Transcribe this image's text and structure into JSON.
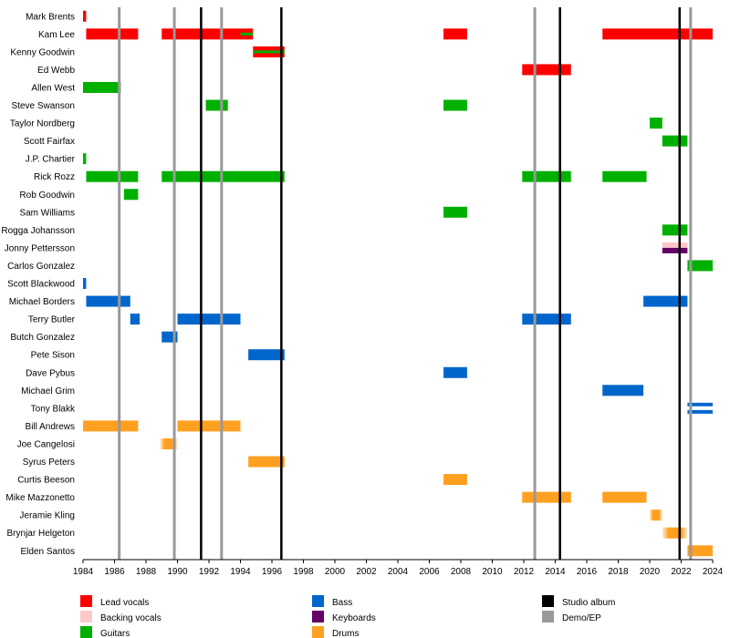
{
  "chart_data": {
    "type": "timeline",
    "x_range": [
      1984,
      2024
    ],
    "x_ticks": [
      1984,
      1986,
      1988,
      1990,
      1992,
      1994,
      1996,
      1998,
      2000,
      2002,
      2004,
      2006,
      2008,
      2010,
      2012,
      2014,
      2016,
      2018,
      2020,
      2022,
      2024
    ],
    "roles": {
      "lead": {
        "label": "Lead vocals",
        "color": "#ff0000"
      },
      "backing": {
        "label": "Backing vocals",
        "color": "#ffc8c8"
      },
      "guitar": {
        "label": "Guitars",
        "color": "#00b000"
      },
      "bass": {
        "label": "Bass",
        "color": "#0066cc"
      },
      "keys": {
        "label": "Keyboards",
        "color": "#660066"
      },
      "drums": {
        "label": "Drums",
        "color": "#ffa020"
      }
    },
    "event_types": {
      "studio": {
        "label": "Studio album",
        "color": "#000000"
      },
      "demo": {
        "label": "Demo/EP",
        "color": "#999999"
      }
    },
    "studio_albums": [
      1991.5,
      1996.6,
      2014.3,
      2021.9
    ],
    "demos": [
      1986.3,
      1989.8,
      1992.8,
      2012.7,
      2022.6
    ],
    "members": [
      {
        "name": "Mark Brents",
        "bars": [
          {
            "role": "lead",
            "from": 1984.0,
            "to": 1984.2
          }
        ]
      },
      {
        "name": "Kam Lee",
        "bars": [
          {
            "role": "lead",
            "from": 1984.2,
            "to": 1987.5
          },
          {
            "role": "lead",
            "from": 1989.0,
            "to": 1994.8,
            "overlay": "guitar",
            "overlay_from": 1994.0,
            "overlay_to": 1994.8
          },
          {
            "role": "lead",
            "from": 2006.9,
            "to": 2008.4
          },
          {
            "role": "lead",
            "from": 2017.0,
            "to": 2024.0
          }
        ]
      },
      {
        "name": "Kenny Goodwin",
        "bars": [
          {
            "role": "lead",
            "from": 1994.8,
            "to": 1996.8,
            "overlay": "guitar"
          }
        ]
      },
      {
        "name": "Ed Webb",
        "bars": [
          {
            "role": "lead",
            "from": 2011.9,
            "to": 2015.0
          }
        ]
      },
      {
        "name": "Allen West",
        "bars": [
          {
            "role": "guitar",
            "from": 1984.0,
            "to": 1986.4
          }
        ]
      },
      {
        "name": "Steve Swanson",
        "bars": [
          {
            "role": "guitar",
            "from": 1991.8,
            "to": 1993.2
          },
          {
            "role": "guitar",
            "from": 2006.9,
            "to": 2008.4
          }
        ]
      },
      {
        "name": "Taylor Nordberg",
        "bars": [
          {
            "role": "guitar",
            "from": 2020.0,
            "to": 2020.8
          }
        ]
      },
      {
        "name": "Scott Fairfax",
        "bars": [
          {
            "role": "guitar",
            "from": 2020.8,
            "to": 2022.4
          }
        ]
      },
      {
        "name": "J.P. Chartier",
        "bars": [
          {
            "role": "guitar",
            "from": 1984.0,
            "to": 1984.2
          }
        ]
      },
      {
        "name": "Rick Rozz",
        "bars": [
          {
            "role": "guitar",
            "from": 1984.2,
            "to": 1987.5
          },
          {
            "role": "guitar",
            "from": 1989.0,
            "to": 1996.8
          },
          {
            "role": "guitar",
            "from": 2011.9,
            "to": 2015.0
          },
          {
            "role": "guitar",
            "from": 2017.0,
            "to": 2019.8
          }
        ]
      },
      {
        "name": "Rob Goodwin",
        "bars": [
          {
            "role": "guitar",
            "from": 1986.6,
            "to": 1987.5
          }
        ]
      },
      {
        "name": "Sam Williams",
        "bars": [
          {
            "role": "guitar",
            "from": 2006.9,
            "to": 2008.4
          }
        ]
      },
      {
        "name": "Rogga Johansson",
        "bars": [
          {
            "role": "guitar",
            "from": 2020.8,
            "to": 2022.4
          }
        ]
      },
      {
        "name": "Jonny Pettersson",
        "bars": [
          {
            "role": "keys",
            "from": 2020.8,
            "to": 2022.4,
            "stripes": [
              "backing",
              "keys"
            ]
          }
        ]
      },
      {
        "name": "Carlos Gonzalez",
        "bars": [
          {
            "role": "guitar",
            "from": 2022.4,
            "to": 2024.0
          }
        ]
      },
      {
        "name": "Scott Blackwood",
        "bars": [
          {
            "role": "bass",
            "from": 1984.0,
            "to": 1984.2
          }
        ]
      },
      {
        "name": "Michael Borders",
        "bars": [
          {
            "role": "bass",
            "from": 1984.2,
            "to": 1987.0
          },
          {
            "role": "bass",
            "from": 2019.6,
            "to": 2022.4
          }
        ]
      },
      {
        "name": "Terry Butler",
        "bars": [
          {
            "role": "bass",
            "from": 1987.0,
            "to": 1987.6
          },
          {
            "role": "bass",
            "from": 1990.0,
            "to": 1994.0
          },
          {
            "role": "bass",
            "from": 2011.9,
            "to": 2015.0
          }
        ]
      },
      {
        "name": "Butch Gonzalez",
        "bars": [
          {
            "role": "bass",
            "from": 1989.0,
            "to": 1990.0
          }
        ]
      },
      {
        "name": "Pete Sison",
        "bars": [
          {
            "role": "bass",
            "from": 1994.5,
            "to": 1996.8
          }
        ]
      },
      {
        "name": "Dave Pybus",
        "bars": [
          {
            "role": "bass",
            "from": 2006.9,
            "to": 2008.4
          }
        ]
      },
      {
        "name": "Michael Grim",
        "bars": [
          {
            "role": "bass",
            "from": 2017.0,
            "to": 2019.6
          }
        ]
      },
      {
        "name": "Tony Blakk",
        "bars": [
          {
            "role": "bass",
            "from": 2022.4,
            "to": 2024.0,
            "stripes": [
              "bass",
              "white",
              "bass"
            ]
          }
        ]
      },
      {
        "name": "Bill Andrews",
        "bars": [
          {
            "role": "drums",
            "from": 1984.0,
            "to": 1987.5
          },
          {
            "role": "drums",
            "from": 1990.0,
            "to": 1994.0
          }
        ]
      },
      {
        "name": "Joe Cangelosi",
        "bars": [
          {
            "role": "drums",
            "from": 1988.9,
            "to": 1990.0,
            "faded": true
          }
        ]
      },
      {
        "name": "Syrus Peters",
        "bars": [
          {
            "role": "drums",
            "from": 1994.5,
            "to": 1996.8
          }
        ]
      },
      {
        "name": "Curtis Beeson",
        "bars": [
          {
            "role": "drums",
            "from": 2006.9,
            "to": 2008.4
          }
        ]
      },
      {
        "name": "Mike Mazzonetto",
        "bars": [
          {
            "role": "drums",
            "from": 2011.9,
            "to": 2015.0
          },
          {
            "role": "drums",
            "from": 2017.0,
            "to": 2019.8
          }
        ]
      },
      {
        "name": "Jeramie Kling",
        "bars": [
          {
            "role": "drums",
            "from": 2020.0,
            "to": 2020.8,
            "faded": true
          }
        ]
      },
      {
        "name": "Brynjar Helgeton",
        "bars": [
          {
            "role": "drums",
            "from": 2020.8,
            "to": 2022.4,
            "faded": true
          }
        ]
      },
      {
        "name": "Elden Santos",
        "bars": [
          {
            "role": "drums",
            "from": 2022.4,
            "to": 2024.0
          }
        ]
      }
    ],
    "legend": {
      "columns": [
        [
          "lead",
          "backing",
          "guitar"
        ],
        [
          "bass",
          "keys",
          "drums"
        ],
        [
          "studio",
          "demo"
        ]
      ]
    }
  }
}
